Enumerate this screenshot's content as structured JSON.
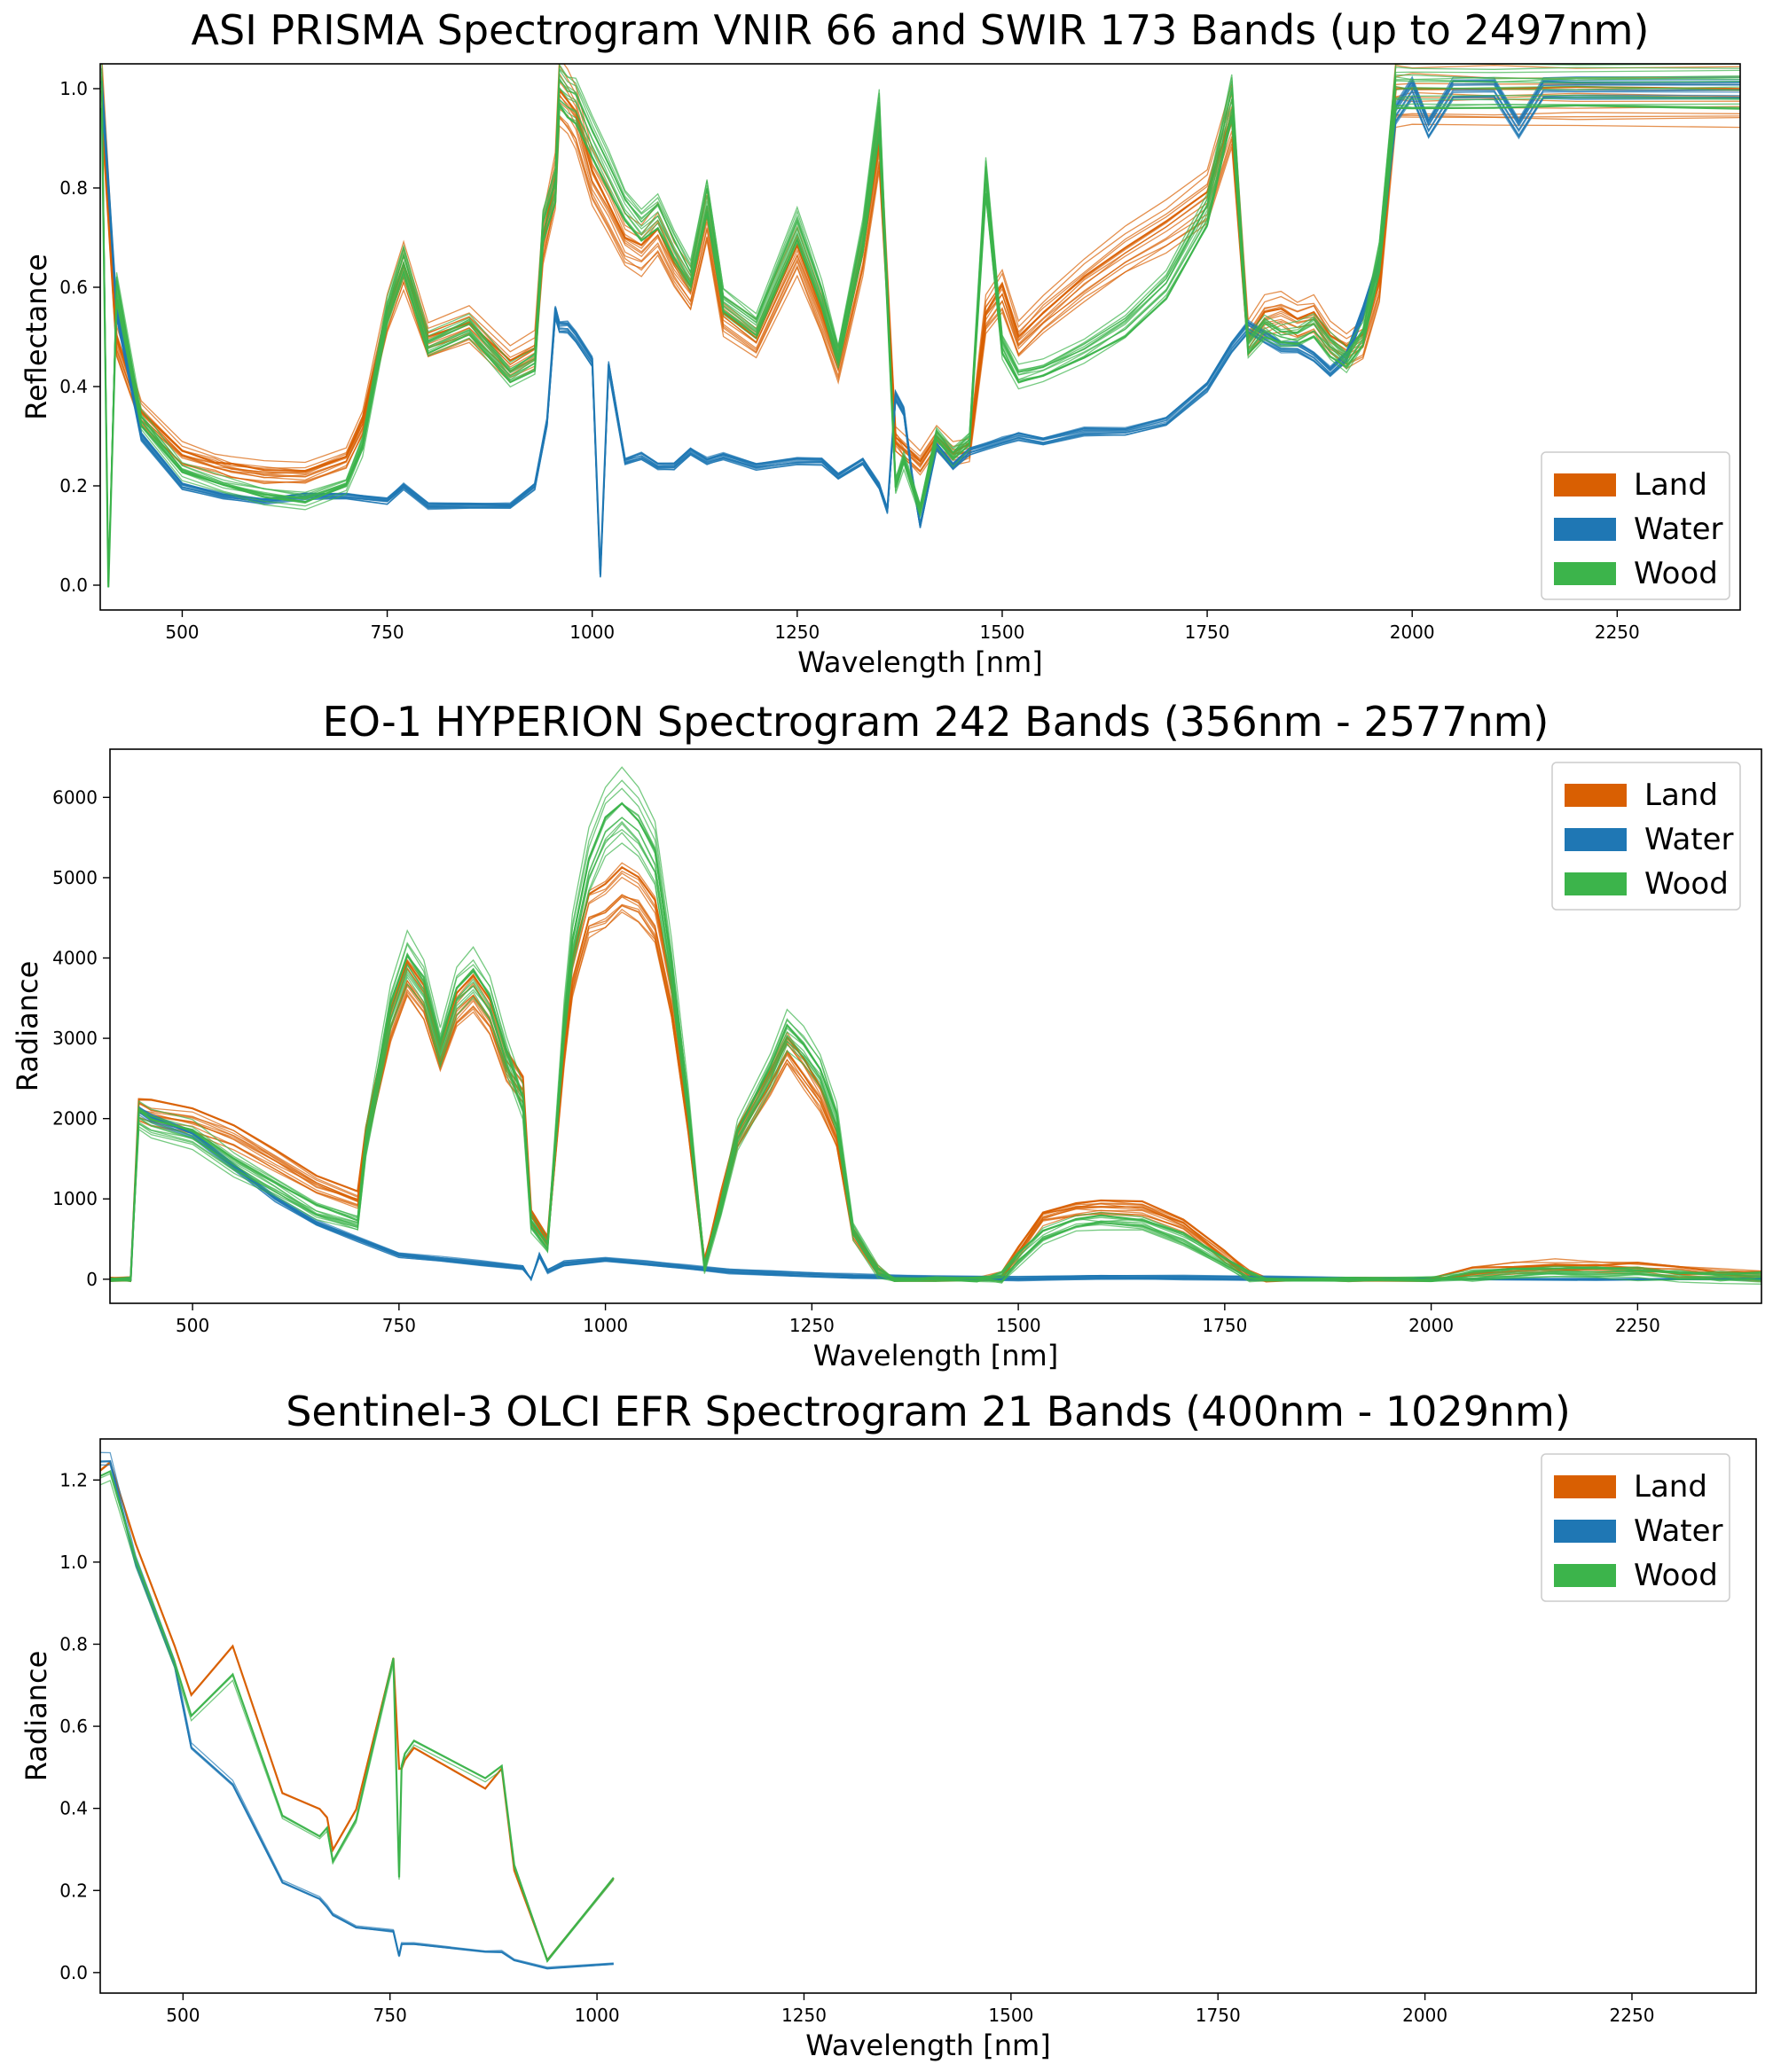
{
  "colors": {
    "Land": "#d95f02",
    "Water": "#1f77b4",
    "Wood": "#3cb44b"
  },
  "chart_data": [
    {
      "type": "line",
      "title": "ASI PRISMA Spectrogram VNIR 66 and SWIR 173 Bands (up to 2497nm)",
      "xlabel": "Wavelength [nm]",
      "ylabel": "Reflectance",
      "xlim": [
        400,
        2400
      ],
      "ylim": [
        -0.05,
        1.05
      ],
      "xticks": [
        500,
        750,
        1000,
        1250,
        1500,
        1750,
        2000,
        2250
      ],
      "yticks": [
        0.0,
        0.2,
        0.4,
        0.6,
        0.8,
        1.0
      ],
      "ytick_labels": [
        "0.0",
        "0.2",
        "0.4",
        "0.6",
        "0.8",
        "1.0"
      ],
      "legend": [
        "Land",
        "Water",
        "Wood"
      ],
      "legend_position": "lower-right",
      "series": [
        {
          "name": "Land",
          "x": [
            402,
            420,
            450,
            500,
            540,
            560,
            600,
            650,
            700,
            720,
            750,
            770,
            800,
            850,
            900,
            930,
            940,
            955,
            960,
            970,
            980,
            1000,
            1020,
            1040,
            1060,
            1080,
            1100,
            1120,
            1140,
            1160,
            1200,
            1250,
            1280,
            1300,
            1330,
            1350,
            1370,
            1380,
            1400,
            1420,
            1440,
            1460,
            1480,
            1500,
            1520,
            1550,
            1600,
            1650,
            1700,
            1750,
            1780,
            1800,
            1820,
            1840,
            1860,
            1880,
            1900,
            1920,
            1940,
            1960,
            1980,
            2000,
            2100,
            2200,
            2400
          ],
          "values": [
            1.0,
            0.5,
            0.35,
            0.27,
            0.25,
            0.24,
            0.23,
            0.23,
            0.26,
            0.33,
            0.55,
            0.65,
            0.5,
            0.53,
            0.45,
            0.48,
            0.7,
            0.82,
            1.0,
            0.98,
            0.95,
            0.83,
            0.77,
            0.7,
            0.68,
            0.72,
            0.65,
            0.6,
            0.75,
            0.55,
            0.5,
            0.68,
            0.55,
            0.45,
            0.68,
            0.9,
            0.3,
            0.28,
            0.25,
            0.3,
            0.27,
            0.28,
            0.55,
            0.6,
            0.5,
            0.55,
            0.62,
            0.68,
            0.73,
            0.79,
            0.95,
            0.5,
            0.55,
            0.56,
            0.54,
            0.55,
            0.5,
            0.48,
            0.5,
            0.62,
            1.0,
            1.0,
            1.0,
            1.0,
            1.0
          ]
        },
        {
          "name": "Water",
          "x": [
            402,
            420,
            450,
            500,
            550,
            600,
            650,
            700,
            750,
            770,
            800,
            850,
            900,
            930,
            945,
            955,
            960,
            970,
            980,
            1000,
            1010,
            1020,
            1040,
            1060,
            1080,
            1100,
            1120,
            1140,
            1160,
            1200,
            1250,
            1280,
            1300,
            1330,
            1350,
            1360,
            1370,
            1380,
            1390,
            1400,
            1420,
            1440,
            1460,
            1480,
            1500,
            1520,
            1550,
            1600,
            1650,
            1700,
            1750,
            1780,
            1800,
            1820,
            1840,
            1860,
            1880,
            1900,
            1920,
            1940,
            1960,
            1980,
            2000,
            2020,
            2050,
            2100,
            2130,
            2160,
            2200,
            2400
          ],
          "values": [
            1.0,
            0.55,
            0.3,
            0.2,
            0.18,
            0.17,
            0.18,
            0.18,
            0.17,
            0.2,
            0.16,
            0.16,
            0.16,
            0.2,
            0.33,
            0.55,
            0.52,
            0.52,
            0.5,
            0.45,
            0.02,
            0.44,
            0.25,
            0.26,
            0.24,
            0.24,
            0.27,
            0.25,
            0.26,
            0.24,
            0.25,
            0.25,
            0.22,
            0.25,
            0.2,
            0.15,
            0.38,
            0.35,
            0.22,
            0.12,
            0.28,
            0.24,
            0.27,
            0.28,
            0.29,
            0.3,
            0.29,
            0.31,
            0.31,
            0.33,
            0.4,
            0.48,
            0.52,
            0.5,
            0.48,
            0.48,
            0.46,
            0.43,
            0.46,
            0.55,
            0.65,
            0.95,
            1.0,
            0.92,
            1.0,
            1.0,
            0.92,
            1.0,
            1.0,
            1.0
          ]
        },
        {
          "name": "Wood",
          "x": [
            402,
            410,
            420,
            450,
            500,
            550,
            600,
            650,
            700,
            720,
            750,
            770,
            800,
            850,
            900,
            930,
            940,
            955,
            960,
            970,
            980,
            1000,
            1020,
            1040,
            1060,
            1080,
            1100,
            1120,
            1140,
            1160,
            1200,
            1250,
            1280,
            1300,
            1330,
            1350,
            1370,
            1380,
            1400,
            1420,
            1440,
            1460,
            1480,
            1500,
            1520,
            1550,
            1600,
            1650,
            1700,
            1750,
            1780,
            1800,
            1820,
            1840,
            1860,
            1880,
            1900,
            1920,
            1940,
            1960,
            1980,
            2000,
            2100,
            2200,
            2400
          ],
          "values": [
            1.0,
            0.0,
            0.6,
            0.33,
            0.23,
            0.2,
            0.18,
            0.17,
            0.2,
            0.28,
            0.55,
            0.65,
            0.48,
            0.52,
            0.42,
            0.45,
            0.72,
            0.8,
            1.0,
            0.98,
            0.97,
            0.9,
            0.83,
            0.76,
            0.72,
            0.75,
            0.68,
            0.62,
            0.78,
            0.57,
            0.52,
            0.72,
            0.58,
            0.46,
            0.7,
            0.95,
            0.2,
            0.25,
            0.15,
            0.3,
            0.26,
            0.29,
            0.82,
            0.48,
            0.42,
            0.43,
            0.47,
            0.52,
            0.6,
            0.75,
            0.98,
            0.48,
            0.52,
            0.5,
            0.5,
            0.52,
            0.48,
            0.45,
            0.5,
            0.66,
            1.0,
            1.0,
            1.0,
            1.0,
            1.0
          ]
        }
      ]
    },
    {
      "type": "line",
      "title": "EO-1 HYPERION Spectrogram 242 Bands (356nm - 2577nm)",
      "xlabel": "Wavelength [nm]",
      "ylabel": "Radiance",
      "xlim": [
        400,
        2400
      ],
      "ylim": [
        -300,
        6600
      ],
      "xticks": [
        500,
        750,
        1000,
        1250,
        1500,
        1750,
        2000,
        2250
      ],
      "yticks": [
        0,
        1000,
        2000,
        3000,
        4000,
        5000,
        6000
      ],
      "ytick_labels": [
        "0",
        "1000",
        "2000",
        "3000",
        "4000",
        "5000",
        "6000"
      ],
      "legend": [
        "Land",
        "Water",
        "Wood"
      ],
      "legend_position": "upper-right",
      "series": [
        {
          "name": "Land",
          "x": [
            400,
            425,
            435,
            450,
            500,
            550,
            600,
            650,
            700,
            710,
            740,
            760,
            780,
            800,
            820,
            840,
            860,
            880,
            900,
            910,
            930,
            950,
            960,
            980,
            1000,
            1020,
            1040,
            1060,
            1080,
            1100,
            1120,
            1140,
            1160,
            1200,
            1220,
            1240,
            1260,
            1280,
            1300,
            1330,
            1350,
            1400,
            1450,
            1480,
            1500,
            1530,
            1570,
            1600,
            1650,
            1700,
            1750,
            1780,
            1800,
            1900,
            2000,
            2050,
            2100,
            2150,
            2200,
            2250,
            2300,
            2350,
            2400
          ],
          "values": [
            0,
            0,
            2150,
            2100,
            2000,
            1800,
            1500,
            1200,
            1000,
            1800,
            3200,
            3800,
            3500,
            2800,
            3400,
            3600,
            3300,
            2700,
            2400,
            800,
            500,
            2900,
            3800,
            4600,
            4700,
            4900,
            4800,
            4500,
            3500,
            2000,
            200,
            1000,
            1800,
            2500,
            2900,
            2600,
            2300,
            1800,
            600,
            100,
            0,
            0,
            0,
            20,
            350,
            800,
            900,
            920,
            900,
            700,
            300,
            50,
            0,
            0,
            0,
            100,
            150,
            180,
            170,
            150,
            110,
            80,
            50
          ]
        },
        {
          "name": "Water",
          "x": [
            400,
            425,
            435,
            450,
            500,
            550,
            600,
            650,
            700,
            750,
            800,
            850,
            900,
            910,
            920,
            930,
            950,
            1000,
            1050,
            1100,
            1150,
            1200,
            1250,
            1300,
            1400,
            1500,
            1600,
            1700,
            1800,
            2000,
            2200,
            2400
          ],
          "values": [
            0,
            0,
            2100,
            2000,
            1800,
            1400,
            1000,
            700,
            500,
            300,
            250,
            200,
            150,
            0,
            300,
            100,
            200,
            250,
            200,
            150,
            100,
            80,
            60,
            40,
            20,
            10,
            30,
            20,
            10,
            0,
            0,
            0
          ]
        },
        {
          "name": "Wood",
          "x": [
            400,
            425,
            435,
            450,
            500,
            550,
            600,
            650,
            700,
            710,
            740,
            760,
            780,
            800,
            820,
            840,
            860,
            880,
            900,
            910,
            930,
            950,
            960,
            980,
            1000,
            1020,
            1040,
            1060,
            1080,
            1100,
            1120,
            1140,
            1160,
            1200,
            1220,
            1240,
            1260,
            1280,
            1300,
            1330,
            1350,
            1400,
            1450,
            1480,
            1500,
            1530,
            1570,
            1600,
            1650,
            1700,
            1750,
            1780,
            1800,
            1900,
            2000,
            2050,
            2100,
            2150,
            2200,
            2250,
            2300,
            2350,
            2400
          ],
          "values": [
            0,
            0,
            2050,
            1950,
            1800,
            1450,
            1150,
            850,
            700,
            1700,
            3400,
            4000,
            3700,
            2900,
            3600,
            3800,
            3500,
            2800,
            2200,
            700,
            400,
            3200,
            4200,
            5200,
            5700,
            5900,
            5700,
            5300,
            3900,
            2200,
            150,
            900,
            1800,
            2600,
            3100,
            2900,
            2600,
            2000,
            600,
            100,
            0,
            0,
            0,
            20,
            250,
            550,
            700,
            720,
            700,
            500,
            200,
            30,
            0,
            0,
            0,
            40,
            80,
            100,
            90,
            70,
            50,
            30,
            20
          ]
        }
      ]
    },
    {
      "type": "line",
      "title": "Sentinel-3 OLCI EFR Spectrogram 21 Bands (400nm - 1029nm)",
      "xlabel": "Wavelength [nm]",
      "ylabel": "Radiance",
      "xlim": [
        400,
        2400
      ],
      "ylim": [
        -0.05,
        1.3
      ],
      "xticks": [
        500,
        750,
        1000,
        1250,
        1500,
        1750,
        2000,
        2250
      ],
      "yticks": [
        0.0,
        0.2,
        0.4,
        0.6,
        0.8,
        1.0,
        1.2
      ],
      "ytick_labels": [
        "0.0",
        "0.2",
        "0.4",
        "0.6",
        "0.8",
        "1.0",
        "1.2"
      ],
      "legend": [
        "Land",
        "Water",
        "Wood"
      ],
      "legend_position": "upper-right",
      "series": [
        {
          "name": "Land",
          "x": [
            400,
            412,
            443,
            490,
            510,
            560,
            620,
            665,
            674,
            681,
            709,
            754,
            761,
            764,
            768,
            779,
            865,
            885,
            900,
            940,
            1020
          ],
          "values": [
            1.23,
            1.25,
            1.05,
            0.8,
            0.68,
            0.8,
            0.44,
            0.4,
            0.38,
            0.3,
            0.4,
            0.77,
            0.5,
            0.5,
            0.52,
            0.55,
            0.45,
            0.5,
            0.25,
            0.03,
            0.23
          ]
        },
        {
          "name": "Water",
          "x": [
            400,
            412,
            443,
            490,
            510,
            560,
            620,
            665,
            674,
            681,
            709,
            754,
            761,
            764,
            768,
            779,
            865,
            885,
            900,
            940,
            1020
          ],
          "values": [
            1.25,
            1.25,
            1.0,
            0.75,
            0.55,
            0.46,
            0.22,
            0.18,
            0.16,
            0.14,
            0.11,
            0.1,
            0.04,
            0.07,
            0.07,
            0.07,
            0.05,
            0.05,
            0.03,
            0.01,
            0.02
          ]
        },
        {
          "name": "Wood",
          "x": [
            400,
            412,
            443,
            490,
            510,
            560,
            620,
            665,
            674,
            681,
            709,
            754,
            761,
            764,
            768,
            779,
            865,
            885,
            900,
            940,
            1020
          ],
          "values": [
            1.2,
            1.21,
            1.0,
            0.75,
            0.62,
            0.72,
            0.38,
            0.33,
            0.35,
            0.27,
            0.37,
            0.76,
            0.23,
            0.5,
            0.53,
            0.56,
            0.47,
            0.5,
            0.26,
            0.03,
            0.23
          ]
        }
      ]
    }
  ]
}
